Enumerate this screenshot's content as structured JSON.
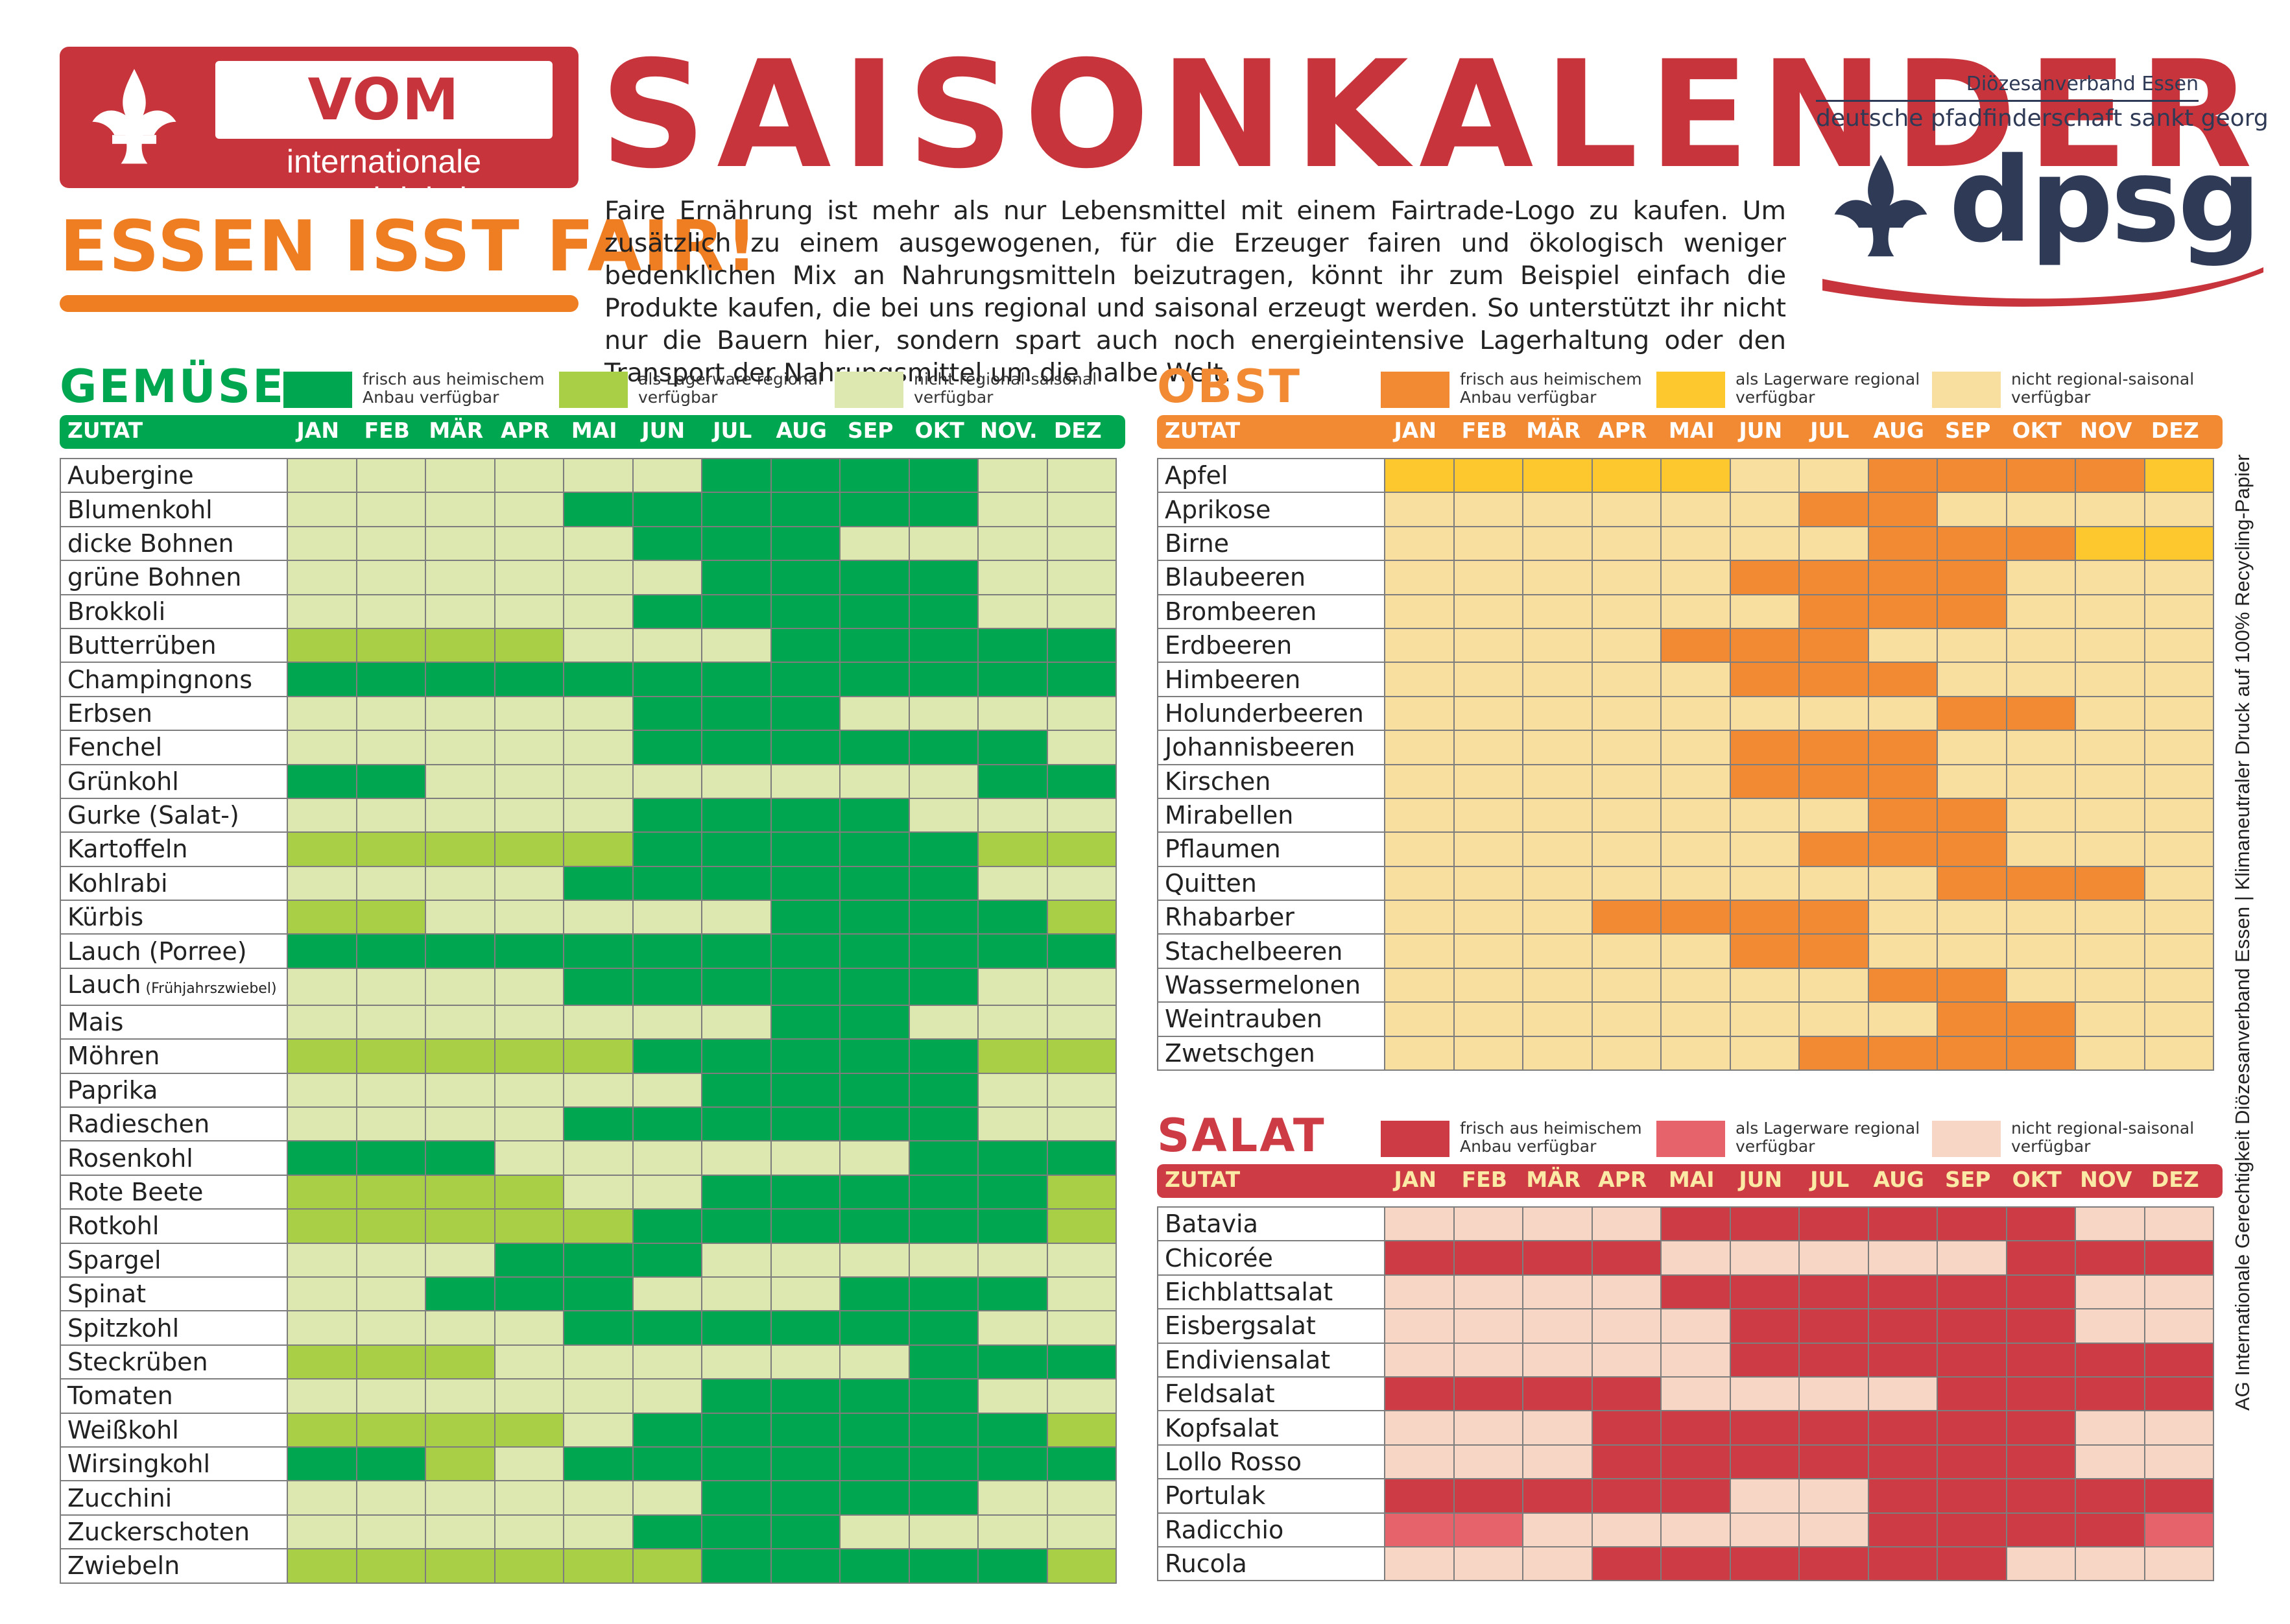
{
  "header": {
    "badge_title": "VOM FACH",
    "badge_subtitle": "internationale gerechtigkeit",
    "slogan": "ESSEN ISST FAIR!",
    "title": "SAISONKALENDER",
    "intro": "Faire Ernährung ist mehr als nur Lebensmittel mit einem Fairtrade-Logo zu kaufen. Um zusätzlich zu einem ausgewogenen, für die Erzeuger fairen und ökologisch weniger bedenklichen Mix an Nahrungsmitteln beizutragen, könnt ihr zum Beispiel einfach die Produkte kaufen, die bei uns regional und saisonal erzeugt werden. So unterstützt ihr nicht nur die Bauern hier, sondern spart auch noch energieintensive Lagerhaltung oder den Transport der Nahrungsmittel um die halbe Welt.",
    "org_region": "Diözesanverband Essen",
    "org_name": "deutsche pfadfinderschaft sankt georg",
    "org_short": "dpsg"
  },
  "side_note": "AG Internationale Gerechtigkeit Diözesanverband Essen | Klimaneutraler Druck auf 100% Recycling-Papier",
  "column_label": "ZUTAT",
  "months_gemuese": [
    "JAN",
    "FEB",
    "MÄR",
    "APR",
    "MAI",
    "JUN",
    "JUL",
    "AUG",
    "SEP",
    "OKT",
    "NOV.",
    "DEZ"
  ],
  "months": [
    "JAN",
    "FEB",
    "MÄR",
    "APR",
    "MAI",
    "JUN",
    "JUL",
    "AUG",
    "SEP",
    "OKT",
    "NOV",
    "DEZ"
  ],
  "legend_labels": {
    "fresh": "frisch aus heimischem Anbau verfügbar",
    "stored": "als Lagerware regional verfügbar",
    "none": "nicht regional-saisonal verfügbar"
  },
  "sections": {
    "gemuese": {
      "title": "GEMÜSE",
      "colors": {
        "fresh": "#00a650",
        "stored": "#a8cf45",
        "none": "#dde8b0"
      },
      "rows": [
        {
          "name": "Aubergine",
          "months": [
            0,
            0,
            0,
            0,
            0,
            0,
            2,
            2,
            2,
            2,
            0,
            0
          ]
        },
        {
          "name": "Blumenkohl",
          "months": [
            0,
            0,
            0,
            0,
            2,
            2,
            2,
            2,
            2,
            2,
            0,
            0
          ]
        },
        {
          "name": "dicke Bohnen",
          "months": [
            0,
            0,
            0,
            0,
            0,
            2,
            2,
            2,
            0,
            0,
            0,
            0
          ]
        },
        {
          "name": "grüne Bohnen",
          "months": [
            0,
            0,
            0,
            0,
            0,
            0,
            2,
            2,
            2,
            2,
            0,
            0
          ]
        },
        {
          "name": "Brokkoli",
          "months": [
            0,
            0,
            0,
            0,
            0,
            2,
            2,
            2,
            2,
            2,
            0,
            0
          ]
        },
        {
          "name": "Butterrüben",
          "months": [
            1,
            1,
            1,
            1,
            0,
            0,
            0,
            2,
            2,
            2,
            2,
            2
          ]
        },
        {
          "name": "Champingnons",
          "months": [
            2,
            2,
            2,
            2,
            2,
            2,
            2,
            2,
            2,
            2,
            2,
            2
          ]
        },
        {
          "name": "Erbsen",
          "months": [
            0,
            0,
            0,
            0,
            0,
            2,
            2,
            2,
            0,
            0,
            0,
            0
          ]
        },
        {
          "name": "Fenchel",
          "months": [
            0,
            0,
            0,
            0,
            0,
            2,
            2,
            2,
            2,
            2,
            2,
            0
          ]
        },
        {
          "name": "Grünkohl",
          "months": [
            2,
            2,
            0,
            0,
            0,
            0,
            0,
            0,
            0,
            0,
            2,
            2
          ]
        },
        {
          "name": "Gurke (Salat-)",
          "months": [
            0,
            0,
            0,
            0,
            0,
            2,
            2,
            2,
            2,
            0,
            0,
            0
          ]
        },
        {
          "name": "Kartoffeln",
          "months": [
            1,
            1,
            1,
            1,
            1,
            2,
            2,
            2,
            2,
            2,
            1,
            1
          ]
        },
        {
          "name": "Kohlrabi",
          "months": [
            0,
            0,
            0,
            0,
            2,
            2,
            2,
            2,
            2,
            2,
            0,
            0
          ]
        },
        {
          "name": "Kürbis",
          "months": [
            1,
            1,
            0,
            0,
            0,
            0,
            0,
            2,
            2,
            2,
            2,
            1
          ]
        },
        {
          "name": "Lauch (Porree)",
          "months": [
            2,
            2,
            2,
            2,
            2,
            2,
            2,
            2,
            2,
            2,
            2,
            2
          ]
        },
        {
          "name": "Lauch",
          "note": "(Frühjahrszwiebel)",
          "months": [
            0,
            0,
            0,
            0,
            2,
            2,
            2,
            2,
            2,
            2,
            0,
            0
          ]
        },
        {
          "name": "Mais",
          "months": [
            0,
            0,
            0,
            0,
            0,
            0,
            0,
            2,
            2,
            0,
            0,
            0
          ]
        },
        {
          "name": "Möhren",
          "months": [
            1,
            1,
            1,
            1,
            1,
            2,
            2,
            2,
            2,
            2,
            1,
            1
          ]
        },
        {
          "name": "Paprika",
          "months": [
            0,
            0,
            0,
            0,
            0,
            0,
            2,
            2,
            2,
            2,
            0,
            0
          ]
        },
        {
          "name": "Radieschen",
          "months": [
            0,
            0,
            0,
            0,
            2,
            2,
            2,
            2,
            2,
            2,
            0,
            0
          ]
        },
        {
          "name": "Rosenkohl",
          "months": [
            2,
            2,
            2,
            0,
            0,
            0,
            0,
            0,
            0,
            2,
            2,
            2
          ]
        },
        {
          "name": "Rote Beete",
          "months": [
            1,
            1,
            1,
            1,
            0,
            0,
            2,
            2,
            2,
            2,
            2,
            1
          ]
        },
        {
          "name": "Rotkohl",
          "months": [
            1,
            1,
            1,
            1,
            1,
            2,
            2,
            2,
            2,
            2,
            2,
            1
          ]
        },
        {
          "name": "Spargel",
          "months": [
            0,
            0,
            0,
            2,
            2,
            2,
            0,
            0,
            0,
            0,
            0,
            0
          ]
        },
        {
          "name": "Spinat",
          "months": [
            0,
            0,
            2,
            2,
            2,
            0,
            0,
            0,
            2,
            2,
            2,
            0
          ]
        },
        {
          "name": "Spitzkohl",
          "months": [
            0,
            0,
            0,
            0,
            2,
            2,
            2,
            2,
            2,
            2,
            0,
            0
          ]
        },
        {
          "name": "Steckrüben",
          "months": [
            1,
            1,
            1,
            0,
            0,
            0,
            0,
            0,
            0,
            2,
            2,
            2
          ]
        },
        {
          "name": "Tomaten",
          "months": [
            0,
            0,
            0,
            0,
            0,
            0,
            2,
            2,
            2,
            2,
            0,
            0
          ]
        },
        {
          "name": "Weißkohl",
          "months": [
            1,
            1,
            1,
            1,
            0,
            2,
            2,
            2,
            2,
            2,
            2,
            1
          ]
        },
        {
          "name": "Wirsingkohl",
          "months": [
            2,
            2,
            1,
            0,
            2,
            2,
            2,
            2,
            2,
            2,
            2,
            2
          ]
        },
        {
          "name": "Zucchini",
          "months": [
            0,
            0,
            0,
            0,
            0,
            0,
            2,
            2,
            2,
            2,
            0,
            0
          ]
        },
        {
          "name": "Zuckerschoten",
          "months": [
            0,
            0,
            0,
            0,
            0,
            2,
            2,
            2,
            0,
            0,
            0,
            0
          ]
        },
        {
          "name": "Zwiebeln",
          "months": [
            1,
            1,
            1,
            1,
            1,
            1,
            2,
            2,
            2,
            2,
            2,
            1
          ]
        }
      ]
    },
    "obst": {
      "title": "OBST",
      "colors": {
        "fresh": "#f28a34",
        "stored": "#fdc82e",
        "none": "#f8dfa0"
      },
      "rows": [
        {
          "name": "Apfel",
          "months": [
            1,
            1,
            1,
            1,
            1,
            0,
            0,
            2,
            2,
            2,
            2,
            1
          ]
        },
        {
          "name": "Aprikose",
          "months": [
            0,
            0,
            0,
            0,
            0,
            0,
            2,
            2,
            0,
            0,
            0,
            0
          ]
        },
        {
          "name": "Birne",
          "months": [
            0,
            0,
            0,
            0,
            0,
            0,
            0,
            2,
            2,
            2,
            1,
            1
          ]
        },
        {
          "name": "Blaubeeren",
          "months": [
            0,
            0,
            0,
            0,
            0,
            2,
            2,
            2,
            2,
            0,
            0,
            0
          ]
        },
        {
          "name": "Brombeeren",
          "months": [
            0,
            0,
            0,
            0,
            0,
            0,
            2,
            2,
            2,
            0,
            0,
            0
          ]
        },
        {
          "name": "Erdbeeren",
          "months": [
            0,
            0,
            0,
            0,
            2,
            2,
            2,
            0,
            0,
            0,
            0,
            0
          ]
        },
        {
          "name": "Himbeeren",
          "months": [
            0,
            0,
            0,
            0,
            0,
            2,
            2,
            2,
            0,
            0,
            0,
            0
          ]
        },
        {
          "name": "Holunderbeeren",
          "months": [
            0,
            0,
            0,
            0,
            0,
            0,
            0,
            0,
            2,
            2,
            0,
            0
          ]
        },
        {
          "name": "Johannisbeeren",
          "months": [
            0,
            0,
            0,
            0,
            0,
            2,
            2,
            2,
            0,
            0,
            0,
            0
          ]
        },
        {
          "name": "Kirschen",
          "months": [
            0,
            0,
            0,
            0,
            0,
            2,
            2,
            2,
            0,
            0,
            0,
            0
          ]
        },
        {
          "name": "Mirabellen",
          "months": [
            0,
            0,
            0,
            0,
            0,
            0,
            0,
            2,
            2,
            0,
            0,
            0
          ]
        },
        {
          "name": "Pflaumen",
          "months": [
            0,
            0,
            0,
            0,
            0,
            0,
            2,
            2,
            2,
            0,
            0,
            0
          ]
        },
        {
          "name": "Quitten",
          "months": [
            0,
            0,
            0,
            0,
            0,
            0,
            0,
            0,
            2,
            2,
            2,
            0
          ]
        },
        {
          "name": "Rhabarber",
          "months": [
            0,
            0,
            0,
            2,
            2,
            2,
            2,
            0,
            0,
            0,
            0,
            0
          ]
        },
        {
          "name": "Stachelbeeren",
          "months": [
            0,
            0,
            0,
            0,
            0,
            2,
            2,
            0,
            0,
            0,
            0,
            0
          ]
        },
        {
          "name": "Wassermelonen",
          "months": [
            0,
            0,
            0,
            0,
            0,
            0,
            0,
            2,
            2,
            0,
            0,
            0
          ]
        },
        {
          "name": "Weintrauben",
          "months": [
            0,
            0,
            0,
            0,
            0,
            0,
            0,
            0,
            2,
            2,
            0,
            0
          ]
        },
        {
          "name": "Zwetschgen",
          "months": [
            0,
            0,
            0,
            0,
            0,
            0,
            2,
            2,
            2,
            2,
            0,
            0
          ]
        }
      ]
    },
    "salat": {
      "title": "SALAT",
      "colors": {
        "fresh": "#cd3b45",
        "stored": "#e7636b",
        "none": "#f8d6c6"
      },
      "rows": [
        {
          "name": "Batavia",
          "months": [
            0,
            0,
            0,
            0,
            2,
            2,
            2,
            2,
            2,
            2,
            0,
            0
          ]
        },
        {
          "name": "Chicorée",
          "months": [
            2,
            2,
            2,
            2,
            0,
            0,
            0,
            0,
            0,
            2,
            2,
            2
          ]
        },
        {
          "name": "Eichblattsalat",
          "months": [
            0,
            0,
            0,
            0,
            2,
            2,
            2,
            2,
            2,
            2,
            0,
            0
          ]
        },
        {
          "name": "Eisbergsalat",
          "months": [
            0,
            0,
            0,
            0,
            0,
            2,
            2,
            2,
            2,
            2,
            0,
            0
          ]
        },
        {
          "name": "Endiviensalat",
          "months": [
            0,
            0,
            0,
            0,
            0,
            2,
            2,
            2,
            2,
            2,
            2,
            2
          ]
        },
        {
          "name": "Feldsalat",
          "months": [
            2,
            2,
            2,
            2,
            0,
            0,
            0,
            0,
            2,
            2,
            2,
            2
          ]
        },
        {
          "name": "Kopfsalat",
          "months": [
            0,
            0,
            0,
            2,
            2,
            2,
            2,
            2,
            2,
            2,
            0,
            0
          ]
        },
        {
          "name": "Lollo Rosso",
          "months": [
            0,
            0,
            0,
            2,
            2,
            2,
            2,
            2,
            2,
            2,
            0,
            0
          ]
        },
        {
          "name": "Portulak",
          "months": [
            2,
            2,
            2,
            2,
            2,
            0,
            0,
            2,
            2,
            2,
            2,
            2
          ]
        },
        {
          "name": "Radicchio",
          "months": [
            1,
            1,
            0,
            0,
            0,
            0,
            0,
            2,
            2,
            2,
            2,
            1
          ]
        },
        {
          "name": "Rucola",
          "months": [
            0,
            0,
            0,
            2,
            2,
            2,
            2,
            2,
            2,
            0,
            0,
            0
          ]
        }
      ]
    }
  }
}
